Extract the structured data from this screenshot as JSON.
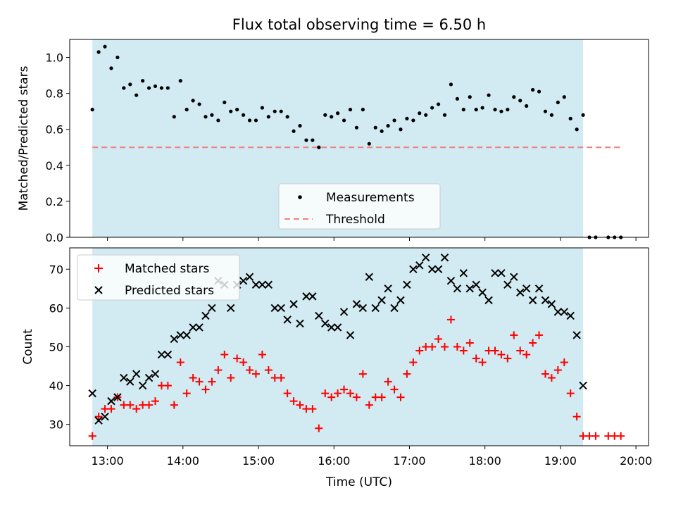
{
  "title": "Flux total observing time = 6.50 h",
  "colors": {
    "shade": "#add8e6",
    "measurement": "#000000",
    "threshold": "#f08080",
    "matched": "#ff0000",
    "predicted": "#000000"
  },
  "chart_data": [
    {
      "type": "scatter",
      "ylabel": "Matched/Predicted stars",
      "ylim": [
        0,
        1.1
      ],
      "yticks": [
        0.0,
        0.2,
        0.4,
        0.6,
        0.8,
        1.0
      ],
      "ytick_labels": [
        "0.0",
        "0.2",
        "0.4",
        "0.6",
        "0.8",
        "1.0"
      ],
      "shaded_span": [
        "12:48",
        "19:18"
      ],
      "legend": {
        "position": "lower center",
        "entries": [
          "Measurements",
          "Threshold"
        ]
      },
      "threshold": {
        "name": "Threshold",
        "value": 0.5,
        "from": "12:48",
        "to": "19:48"
      },
      "series": [
        {
          "name": "Measurements",
          "x": [
            "12:48",
            "12:53",
            "12:58",
            "13:03",
            "13:08",
            "13:13",
            "13:18",
            "13:23",
            "13:28",
            "13:33",
            "13:38",
            "13:43",
            "13:48",
            "13:53",
            "13:58",
            "14:03",
            "14:08",
            "14:13",
            "14:18",
            "14:23",
            "14:28",
            "14:33",
            "14:38",
            "14:43",
            "14:48",
            "14:53",
            "14:58",
            "15:03",
            "15:08",
            "15:13",
            "15:18",
            "15:23",
            "15:28",
            "15:33",
            "15:38",
            "15:43",
            "15:48",
            "15:53",
            "15:58",
            "16:03",
            "16:08",
            "16:13",
            "16:18",
            "16:23",
            "16:28",
            "16:33",
            "16:38",
            "16:43",
            "16:48",
            "16:53",
            "16:58",
            "17:03",
            "17:08",
            "17:13",
            "17:18",
            "17:23",
            "17:28",
            "17:33",
            "17:38",
            "17:43",
            "17:48",
            "17:53",
            "17:58",
            "18:03",
            "18:08",
            "18:13",
            "18:18",
            "18:23",
            "18:28",
            "18:33",
            "18:38",
            "18:43",
            "18:48",
            "18:53",
            "18:58",
            "19:03",
            "19:08",
            "19:13",
            "19:18",
            "19:23",
            "19:28",
            "19:38",
            "19:43",
            "19:48"
          ],
          "y": [
            0.71,
            1.03,
            1.06,
            0.94,
            1.0,
            0.83,
            0.85,
            0.79,
            0.87,
            0.83,
            0.84,
            0.83,
            0.83,
            0.67,
            0.87,
            0.71,
            0.76,
            0.74,
            0.67,
            0.68,
            0.65,
            0.75,
            0.7,
            0.71,
            0.68,
            0.65,
            0.65,
            0.72,
            0.67,
            0.7,
            0.7,
            0.67,
            0.59,
            0.62,
            0.54,
            0.54,
            0.5,
            0.68,
            0.67,
            0.69,
            0.65,
            0.71,
            0.61,
            0.71,
            0.52,
            0.61,
            0.59,
            0.62,
            0.65,
            0.6,
            0.66,
            0.65,
            0.69,
            0.68,
            0.72,
            0.74,
            0.68,
            0.85,
            0.77,
            0.71,
            0.78,
            0.71,
            0.72,
            0.79,
            0.71,
            0.7,
            0.71,
            0.78,
            0.76,
            0.73,
            0.82,
            0.81,
            0.7,
            0.68,
            0.75,
            0.78,
            0.66,
            0.6,
            0.68,
            0.0,
            0.0,
            0.0,
            0.0,
            0.0
          ]
        }
      ]
    },
    {
      "type": "scatter",
      "xlabel": "Time (UTC)",
      "ylabel": "Count",
      "ylim": [
        24.5,
        75.5
      ],
      "yticks": [
        30,
        40,
        50,
        60,
        70
      ],
      "ytick_labels": [
        "30",
        "40",
        "50",
        "60",
        "70"
      ],
      "xlim": [
        "12:30",
        "20:10"
      ],
      "xticks": [
        "13:00",
        "14:00",
        "15:00",
        "16:00",
        "17:00",
        "18:00",
        "19:00",
        "20:00"
      ],
      "xtick_labels": [
        "13:00",
        "14:00",
        "15:00",
        "16:00",
        "17:00",
        "18:00",
        "19:00",
        "20:00"
      ],
      "shaded_span": [
        "12:48",
        "19:18"
      ],
      "legend": {
        "position": "upper left",
        "entries": [
          "Matched stars",
          "Predicted stars"
        ]
      },
      "series": [
        {
          "name": "Matched stars",
          "x": [
            "12:48",
            "12:53",
            "12:58",
            "13:03",
            "13:08",
            "13:13",
            "13:18",
            "13:23",
            "13:28",
            "13:33",
            "13:38",
            "13:43",
            "13:48",
            "13:53",
            "13:58",
            "14:03",
            "14:08",
            "14:13",
            "14:18",
            "14:23",
            "14:28",
            "14:33",
            "14:38",
            "14:43",
            "14:48",
            "14:53",
            "14:58",
            "15:03",
            "15:08",
            "15:13",
            "15:18",
            "15:23",
            "15:28",
            "15:33",
            "15:38",
            "15:43",
            "15:48",
            "15:53",
            "15:58",
            "16:03",
            "16:08",
            "16:13",
            "16:18",
            "16:23",
            "16:28",
            "16:33",
            "16:38",
            "16:43",
            "16:48",
            "16:53",
            "16:58",
            "17:03",
            "17:08",
            "17:13",
            "17:18",
            "17:23",
            "17:28",
            "17:33",
            "17:38",
            "17:43",
            "17:48",
            "17:53",
            "17:58",
            "18:03",
            "18:08",
            "18:13",
            "18:18",
            "18:23",
            "18:28",
            "18:33",
            "18:38",
            "18:43",
            "18:48",
            "18:53",
            "18:58",
            "19:03",
            "19:08",
            "19:13",
            "19:18",
            "19:23",
            "19:28",
            "19:38",
            "19:43",
            "19:48"
          ],
          "y": [
            27,
            32,
            34,
            34,
            37,
            35,
            35,
            34,
            35,
            35,
            36,
            40,
            40,
            35,
            46,
            38,
            42,
            41,
            39,
            41,
            44,
            48,
            42,
            47,
            46,
            44,
            43,
            48,
            44,
            42,
            42,
            38,
            36,
            35,
            34,
            34,
            29,
            38,
            37,
            38,
            39,
            38,
            37,
            43,
            35,
            37,
            37,
            41,
            39,
            37,
            43,
            46,
            49,
            50,
            50,
            52,
            50,
            57,
            50,
            49,
            51,
            47,
            46,
            49,
            49,
            48,
            47,
            53,
            49,
            48,
            51,
            53,
            43,
            42,
            44,
            46,
            38,
            32,
            27,
            27,
            27,
            27,
            27,
            27
          ]
        },
        {
          "name": "Predicted stars",
          "x": [
            "12:48",
            "12:53",
            "12:58",
            "13:03",
            "13:08",
            "13:13",
            "13:18",
            "13:23",
            "13:28",
            "13:33",
            "13:38",
            "13:43",
            "13:48",
            "13:53",
            "13:58",
            "14:03",
            "14:08",
            "14:13",
            "14:18",
            "14:23",
            "14:28",
            "14:33",
            "14:38",
            "14:43",
            "14:48",
            "14:53",
            "14:58",
            "15:03",
            "15:08",
            "15:13",
            "15:18",
            "15:23",
            "15:28",
            "15:33",
            "15:38",
            "15:43",
            "15:48",
            "15:53",
            "15:58",
            "16:03",
            "16:08",
            "16:13",
            "16:18",
            "16:23",
            "16:28",
            "16:33",
            "16:38",
            "16:43",
            "16:48",
            "16:53",
            "16:58",
            "17:03",
            "17:08",
            "17:13",
            "17:18",
            "17:23",
            "17:28",
            "17:33",
            "17:38",
            "17:43",
            "17:48",
            "17:53",
            "17:58",
            "18:03",
            "18:08",
            "18:13",
            "18:18",
            "18:23",
            "18:28",
            "18:33",
            "18:38",
            "18:43",
            "18:48",
            "18:53",
            "18:58",
            "19:03",
            "19:08",
            "19:13",
            "19:18"
          ],
          "y": [
            38,
            31,
            32,
            36,
            37,
            42,
            41,
            43,
            40,
            42,
            43,
            48,
            48,
            52,
            53,
            53,
            55,
            55,
            58,
            60,
            67,
            66,
            60,
            66,
            67,
            68,
            66,
            66,
            66,
            60,
            60,
            57,
            61,
            56,
            63,
            63,
            58,
            56,
            55,
            55,
            59,
            53,
            61,
            60,
            68,
            60,
            62,
            65,
            60,
            62,
            66,
            70,
            71,
            73,
            70,
            70,
            73,
            67,
            65,
            69,
            65,
            66,
            64,
            62,
            69,
            69,
            66,
            68,
            64,
            65,
            62,
            65,
            62,
            61,
            59,
            59,
            58,
            53,
            40
          ]
        }
      ]
    }
  ]
}
